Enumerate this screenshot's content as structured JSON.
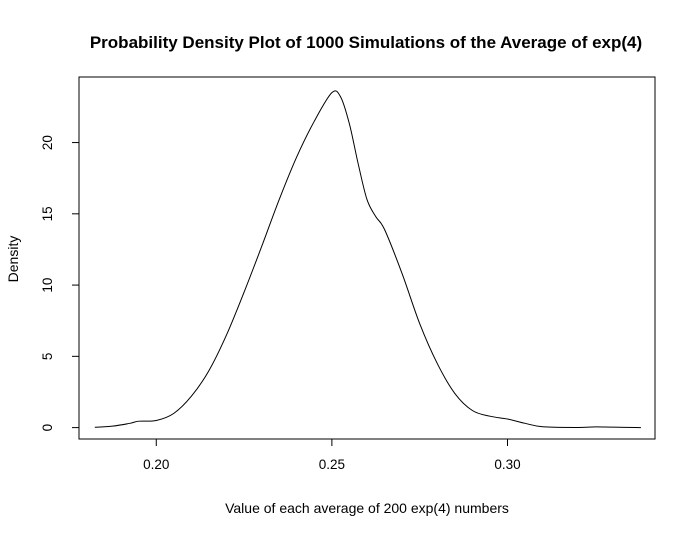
{
  "chart_data": {
    "type": "line",
    "title": "Probability Density Plot of 1000 Simulations of the Average of exp(4)",
    "xlabel": "Value of each average of 200 exp(4) numbers",
    "ylabel": "Density",
    "xlim": [
      0.178,
      0.342
    ],
    "ylim": [
      -0.8,
      24.6
    ],
    "x_ticks": [
      0.2,
      0.25,
      0.3
    ],
    "x_tick_labels": [
      "0.20",
      "0.25",
      "0.30"
    ],
    "y_ticks": [
      0,
      5,
      10,
      15,
      20
    ],
    "y_tick_labels": [
      "0",
      "5",
      "10",
      "15",
      "20"
    ],
    "grid": false,
    "legend": "none",
    "line_color": "#000000",
    "series": [
      {
        "x": [
          0.1825,
          0.1875,
          0.1925,
          0.195,
          0.2,
          0.205,
          0.21,
          0.215,
          0.22,
          0.225,
          0.23,
          0.235,
          0.24,
          0.245,
          0.25,
          0.2525,
          0.255,
          0.2575,
          0.26,
          0.2625,
          0.265,
          0.27,
          0.275,
          0.28,
          0.285,
          0.29,
          0.295,
          0.3,
          0.305,
          0.31,
          0.32,
          0.325,
          0.33,
          0.338
        ],
        "y": [
          0.02,
          0.1,
          0.3,
          0.45,
          0.5,
          1.0,
          2.2,
          4.0,
          6.5,
          9.5,
          12.7,
          16.0,
          19.0,
          21.5,
          23.5,
          23.2,
          21.3,
          18.5,
          16.0,
          14.8,
          13.9,
          10.8,
          7.3,
          4.5,
          2.4,
          1.2,
          0.8,
          0.6,
          0.3,
          0.06,
          0.01,
          0.05,
          0.03,
          0.0
        ]
      }
    ]
  }
}
